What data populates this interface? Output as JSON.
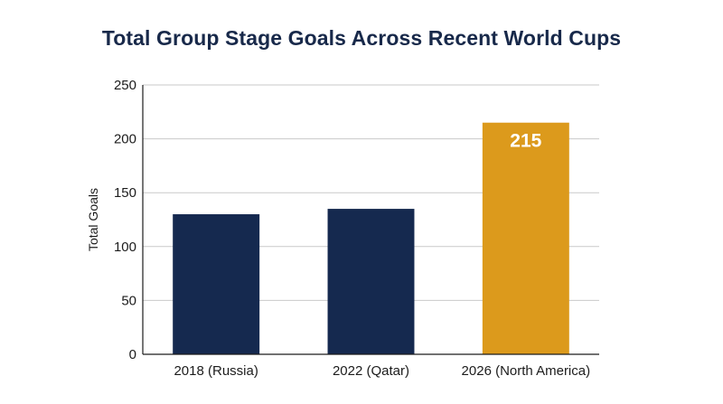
{
  "chart_data": {
    "type": "bar",
    "title": "Total Group Stage Goals Across Recent World Cups",
    "xlabel": "",
    "ylabel": "Total Goals",
    "categories": [
      "2018 (Russia)",
      "2022 (Qatar)",
      "2026 (North America)"
    ],
    "values": [
      130,
      135,
      215
    ],
    "bar_colors": [
      "#15294f",
      "#15294f",
      "#dc9a1c"
    ],
    "data_labels": [
      "",
      "",
      "215"
    ],
    "ylim": [
      0,
      250
    ],
    "yticks": [
      0,
      50,
      100,
      150,
      200,
      250
    ],
    "grid": true,
    "legend": "none"
  },
  "colors": {
    "title": "#18294a",
    "grid": "#c9c9c9",
    "axis": "#1c1c1c"
  }
}
